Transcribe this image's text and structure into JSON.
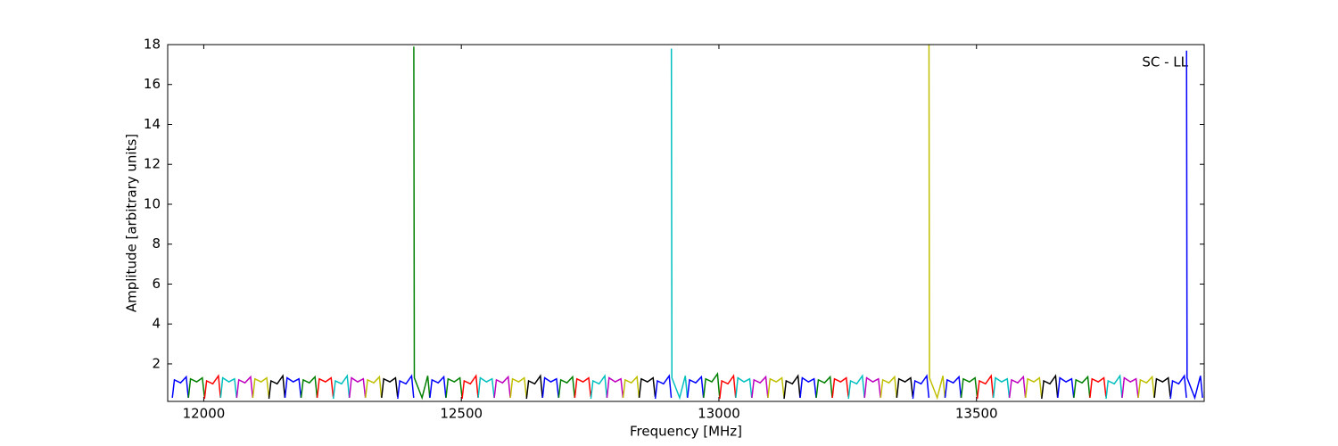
{
  "chart_data": {
    "type": "line",
    "xlabel": "Frequency [MHz]",
    "ylabel": "Amplitude [arbitrary units]",
    "annotation": "SC - LL",
    "xlim": [
      11930,
      13942
    ],
    "xticks": [
      12000,
      12500,
      13000,
      13500
    ],
    "ylim": [
      0.12,
      18
    ],
    "yticks": [
      2,
      4,
      6,
      8,
      10,
      12,
      14,
      16,
      18
    ],
    "series": [
      {
        "color": "#0000ff",
        "x": [
          11939,
          11943,
          11955,
          11966,
          11970
        ],
        "values": [
          0.3,
          1.2,
          1.05,
          1.35,
          0.3
        ]
      },
      {
        "color": "#008000",
        "x": [
          11970.25,
          11974.25,
          11986.25,
          11997.25,
          12001.25
        ],
        "values": [
          0.3,
          1.25,
          1.1,
          1.3,
          0.35
        ]
      },
      {
        "color": "#ff0000",
        "x": [
          12001.5,
          12005.5,
          12017.5,
          12028.5,
          12032.5
        ],
        "values": [
          0.25,
          1.15,
          1.0,
          1.4,
          0.3
        ]
      },
      {
        "color": "#00bfbf",
        "x": [
          12032.75,
          12036.75,
          12048.75,
          12059.75,
          12063.75
        ],
        "values": [
          0.3,
          1.3,
          1.1,
          1.25,
          0.3
        ]
      },
      {
        "color": "#bf00bf",
        "x": [
          12064,
          12068,
          12080,
          12091,
          12095
        ],
        "values": [
          0.3,
          1.2,
          1.05,
          1.35,
          0.3
        ]
      },
      {
        "color": "#bfbf00",
        "x": [
          12095.25,
          12099.25,
          12111.25,
          12122.25,
          12126.25
        ],
        "values": [
          0.3,
          1.25,
          1.1,
          1.3,
          0.35
        ]
      },
      {
        "color": "#000000",
        "x": [
          12126.5,
          12130.5,
          12142.5,
          12153.5,
          12157.5
        ],
        "values": [
          0.25,
          1.15,
          1.0,
          1.4,
          0.3
        ]
      },
      {
        "color": "#0000ff",
        "x": [
          12157.75,
          12161.75,
          12173.75,
          12184.75,
          12188.75
        ],
        "values": [
          0.3,
          1.3,
          1.1,
          1.25,
          0.3
        ]
      },
      {
        "color": "#008000",
        "x": [
          12189,
          12193,
          12205,
          12216,
          12220
        ],
        "values": [
          0.3,
          1.2,
          1.05,
          1.35,
          0.3
        ]
      },
      {
        "color": "#ff0000",
        "x": [
          12220.25,
          12224.25,
          12236.25,
          12247.25,
          12251.25
        ],
        "values": [
          0.3,
          1.25,
          1.1,
          1.3,
          0.35
        ]
      },
      {
        "color": "#00bfbf",
        "x": [
          12251.5,
          12255.5,
          12267.5,
          12278.5,
          12282.5
        ],
        "values": [
          0.25,
          1.15,
          1.0,
          1.4,
          0.3
        ]
      },
      {
        "color": "#bf00bf",
        "x": [
          12282.75,
          12286.75,
          12298.75,
          12309.75,
          12313.75
        ],
        "values": [
          0.3,
          1.3,
          1.1,
          1.25,
          0.3
        ]
      },
      {
        "color": "#bfbf00",
        "x": [
          12314,
          12318,
          12330,
          12341,
          12345
        ],
        "values": [
          0.3,
          1.2,
          1.05,
          1.35,
          0.3
        ]
      },
      {
        "color": "#000000",
        "x": [
          12345.25,
          12349.25,
          12361.25,
          12372.25,
          12376.25
        ],
        "values": [
          0.3,
          1.25,
          1.1,
          1.3,
          0.35
        ]
      },
      {
        "color": "#0000ff",
        "x": [
          12376.5,
          12380.5,
          12392.5,
          12403.5,
          12407.5
        ],
        "values": [
          0.25,
          1.15,
          1.0,
          1.4,
          0.3
        ]
      },
      {
        "color": "#008000",
        "x": [
          12407.75,
          12408.75,
          12423.75,
          12434.75,
          12438.75
        ],
        "values": [
          17.9,
          1.3,
          0.3,
          1.4,
          0.3
        ]
      },
      {
        "color": "#0000ff",
        "x": [
          12439,
          12443,
          12455,
          12466,
          12470
        ],
        "values": [
          0.3,
          1.2,
          1.05,
          1.35,
          0.3
        ]
      },
      {
        "color": "#008000",
        "x": [
          12470.25,
          12474.25,
          12486.25,
          12497.25,
          12501.25
        ],
        "values": [
          0.3,
          1.25,
          1.1,
          1.3,
          0.35
        ]
      },
      {
        "color": "#ff0000",
        "x": [
          12501.5,
          12505.5,
          12517.5,
          12528.5,
          12532.5
        ],
        "values": [
          0.25,
          1.15,
          1.0,
          1.4,
          0.3
        ]
      },
      {
        "color": "#00bfbf",
        "x": [
          12532.75,
          12536.75,
          12548.75,
          12559.75,
          12563.75
        ],
        "values": [
          0.3,
          1.3,
          1.1,
          1.25,
          0.3
        ]
      },
      {
        "color": "#bf00bf",
        "x": [
          12564,
          12568,
          12580,
          12591,
          12595
        ],
        "values": [
          0.3,
          1.2,
          1.05,
          1.35,
          0.3
        ]
      },
      {
        "color": "#bfbf00",
        "x": [
          12595.25,
          12599.25,
          12611.25,
          12622.25,
          12626.25
        ],
        "values": [
          0.3,
          1.25,
          1.1,
          1.3,
          0.35
        ]
      },
      {
        "color": "#000000",
        "x": [
          12626.5,
          12630.5,
          12642.5,
          12653.5,
          12657.5
        ],
        "values": [
          0.25,
          1.15,
          1.0,
          1.4,
          0.3
        ]
      },
      {
        "color": "#0000ff",
        "x": [
          12657.75,
          12661.75,
          12673.75,
          12684.75,
          12688.75
        ],
        "values": [
          0.3,
          1.3,
          1.1,
          1.25,
          0.3
        ]
      },
      {
        "color": "#008000",
        "x": [
          12689,
          12693,
          12705,
          12716,
          12720
        ],
        "values": [
          0.3,
          1.2,
          1.05,
          1.35,
          0.3
        ]
      },
      {
        "color": "#ff0000",
        "x": [
          12720.25,
          12724.25,
          12736.25,
          12747.25,
          12751.25
        ],
        "values": [
          0.3,
          1.25,
          1.1,
          1.3,
          0.35
        ]
      },
      {
        "color": "#00bfbf",
        "x": [
          12751.5,
          12755.5,
          12767.5,
          12778.5,
          12782.5
        ],
        "values": [
          0.25,
          1.15,
          1.0,
          1.4,
          0.3
        ]
      },
      {
        "color": "#bf00bf",
        "x": [
          12782.75,
          12786.75,
          12798.75,
          12809.75,
          12813.75
        ],
        "values": [
          0.3,
          1.3,
          1.1,
          1.25,
          0.3
        ]
      },
      {
        "color": "#bfbf00",
        "x": [
          12814,
          12818,
          12830,
          12841,
          12845
        ],
        "values": [
          0.3,
          1.2,
          1.05,
          1.35,
          0.3
        ]
      },
      {
        "color": "#000000",
        "x": [
          12845.25,
          12849.25,
          12861.25,
          12872.25,
          12876.25
        ],
        "values": [
          0.3,
          1.25,
          1.1,
          1.3,
          0.35
        ]
      },
      {
        "color": "#0000ff",
        "x": [
          12876.5,
          12880.5,
          12892.5,
          12903.5,
          12907.5
        ],
        "values": [
          0.25,
          1.15,
          1.0,
          1.4,
          0.3
        ]
      },
      {
        "color": "#00bfbf",
        "x": [
          12907.75,
          12908.75,
          12923.75,
          12934.75,
          12938.75
        ],
        "values": [
          17.8,
          1.3,
          0.3,
          1.4,
          0.3
        ]
      },
      {
        "color": "#0000ff",
        "x": [
          12939,
          12943,
          12955,
          12966,
          12970
        ],
        "values": [
          0.3,
          1.2,
          1.05,
          1.35,
          0.3
        ]
      },
      {
        "color": "#008000",
        "x": [
          12970.25,
          12974.25,
          12986.25,
          12997.25,
          13001.25
        ],
        "values": [
          0.3,
          1.25,
          1.1,
          1.5,
          0.35
        ]
      },
      {
        "color": "#ff0000",
        "x": [
          13001.5,
          13005.5,
          13017.5,
          13028.5,
          13032.5
        ],
        "values": [
          0.25,
          1.15,
          1.0,
          1.4,
          0.3
        ]
      },
      {
        "color": "#00bfbf",
        "x": [
          13032.75,
          13036.75,
          13048.75,
          13059.75,
          13063.75
        ],
        "values": [
          0.3,
          1.3,
          1.1,
          1.25,
          0.3
        ]
      },
      {
        "color": "#bf00bf",
        "x": [
          13064,
          13068,
          13080,
          13091,
          13095
        ],
        "values": [
          0.3,
          1.2,
          1.05,
          1.35,
          0.3
        ]
      },
      {
        "color": "#bfbf00",
        "x": [
          13095.25,
          13099.25,
          13111.25,
          13122.25,
          13126.25
        ],
        "values": [
          0.3,
          1.25,
          1.1,
          1.3,
          0.35
        ]
      },
      {
        "color": "#000000",
        "x": [
          13126.5,
          13130.5,
          13142.5,
          13153.5,
          13157.5
        ],
        "values": [
          0.25,
          1.15,
          1.0,
          1.4,
          0.3
        ]
      },
      {
        "color": "#0000ff",
        "x": [
          13157.75,
          13161.75,
          13173.75,
          13184.75,
          13188.75
        ],
        "values": [
          0.3,
          1.3,
          1.1,
          1.25,
          0.3
        ]
      },
      {
        "color": "#008000",
        "x": [
          13189,
          13193,
          13205,
          13216,
          13220
        ],
        "values": [
          0.3,
          1.2,
          1.05,
          1.35,
          0.3
        ]
      },
      {
        "color": "#ff0000",
        "x": [
          13220.25,
          13224.25,
          13236.25,
          13247.25,
          13251.25
        ],
        "values": [
          0.3,
          1.25,
          1.1,
          1.3,
          0.35
        ]
      },
      {
        "color": "#00bfbf",
        "x": [
          13251.5,
          13255.5,
          13267.5,
          13278.5,
          13282.5
        ],
        "values": [
          0.25,
          1.15,
          1.0,
          1.4,
          0.3
        ]
      },
      {
        "color": "#bf00bf",
        "x": [
          13282.75,
          13286.75,
          13298.75,
          13309.75,
          13313.75
        ],
        "values": [
          0.3,
          1.3,
          1.1,
          1.25,
          0.3
        ]
      },
      {
        "color": "#bfbf00",
        "x": [
          13314,
          13318,
          13330,
          13341,
          13345
        ],
        "values": [
          0.3,
          1.2,
          1.05,
          1.35,
          0.3
        ]
      },
      {
        "color": "#000000",
        "x": [
          13345.25,
          13349.25,
          13361.25,
          13372.25,
          13376.25
        ],
        "values": [
          0.3,
          1.25,
          1.1,
          1.3,
          0.35
        ]
      },
      {
        "color": "#0000ff",
        "x": [
          13376.5,
          13380.5,
          13392.5,
          13403.5,
          13407.5
        ],
        "values": [
          0.25,
          1.15,
          1.0,
          1.4,
          0.3
        ]
      },
      {
        "color": "#bfbf00",
        "x": [
          13407.75,
          13408.75,
          13423.75,
          13434.75,
          13438.75
        ],
        "values": [
          18,
          1.3,
          0.3,
          1.4,
          0.3
        ]
      },
      {
        "color": "#0000ff",
        "x": [
          13439,
          13443,
          13455,
          13466,
          13470
        ],
        "values": [
          0.3,
          1.2,
          1.05,
          1.35,
          0.3
        ]
      },
      {
        "color": "#008000",
        "x": [
          13470.25,
          13474.25,
          13486.25,
          13497.25,
          13501.25
        ],
        "values": [
          0.3,
          1.25,
          1.1,
          1.3,
          0.35
        ]
      },
      {
        "color": "#ff0000",
        "x": [
          13501.5,
          13505.5,
          13517.5,
          13528.5,
          13532.5
        ],
        "values": [
          0.25,
          1.15,
          1.0,
          1.4,
          0.3
        ]
      },
      {
        "color": "#00bfbf",
        "x": [
          13532.75,
          13536.75,
          13548.75,
          13559.75,
          13563.75
        ],
        "values": [
          0.3,
          1.3,
          1.1,
          1.25,
          0.3
        ]
      },
      {
        "color": "#bf00bf",
        "x": [
          13564,
          13568,
          13580,
          13591,
          13595
        ],
        "values": [
          0.3,
          1.2,
          1.05,
          1.35,
          0.3
        ]
      },
      {
        "color": "#bfbf00",
        "x": [
          13595.25,
          13599.25,
          13611.25,
          13622.25,
          13626.25
        ],
        "values": [
          0.3,
          1.25,
          1.1,
          1.3,
          0.35
        ]
      },
      {
        "color": "#000000",
        "x": [
          13626.5,
          13630.5,
          13642.5,
          13653.5,
          13657.5
        ],
        "values": [
          0.25,
          1.15,
          1.0,
          1.4,
          0.3
        ]
      },
      {
        "color": "#0000ff",
        "x": [
          13657.75,
          13661.75,
          13673.75,
          13684.75,
          13688.75
        ],
        "values": [
          0.3,
          1.3,
          1.1,
          1.25,
          0.3
        ]
      },
      {
        "color": "#008000",
        "x": [
          13689,
          13693,
          13705,
          13716,
          13720
        ],
        "values": [
          0.3,
          1.2,
          1.05,
          1.35,
          0.3
        ]
      },
      {
        "color": "#ff0000",
        "x": [
          13720.25,
          13724.25,
          13736.25,
          13747.25,
          13751.25
        ],
        "values": [
          0.3,
          1.25,
          1.1,
          1.3,
          0.35
        ]
      },
      {
        "color": "#00bfbf",
        "x": [
          13751.5,
          13755.5,
          13767.5,
          13778.5,
          13782.5
        ],
        "values": [
          0.25,
          1.15,
          1.0,
          1.4,
          0.3
        ]
      },
      {
        "color": "#bf00bf",
        "x": [
          13782.75,
          13786.75,
          13798.75,
          13809.75,
          13813.75
        ],
        "values": [
          0.3,
          1.3,
          1.1,
          1.25,
          0.3
        ]
      },
      {
        "color": "#bfbf00",
        "x": [
          13814,
          13818,
          13830,
          13841,
          13845
        ],
        "values": [
          0.3,
          1.2,
          1.05,
          1.35,
          0.3
        ]
      },
      {
        "color": "#000000",
        "x": [
          13845.25,
          13849.25,
          13861.25,
          13872.25,
          13876.25
        ],
        "values": [
          0.3,
          1.25,
          1.1,
          1.3,
          0.35
        ]
      },
      {
        "color": "#0000ff",
        "x": [
          13876.5,
          13880.5,
          13892.5,
          13903.5,
          13907.5
        ],
        "values": [
          0.25,
          1.15,
          1.0,
          1.4,
          0.3
        ]
      },
      {
        "color": "#0000ff",
        "x": [
          13907.75,
          13908.75,
          13923.75,
          13934.75,
          13938.75
        ],
        "values": [
          17.7,
          1.3,
          0.3,
          1.4,
          0.3
        ]
      }
    ]
  }
}
